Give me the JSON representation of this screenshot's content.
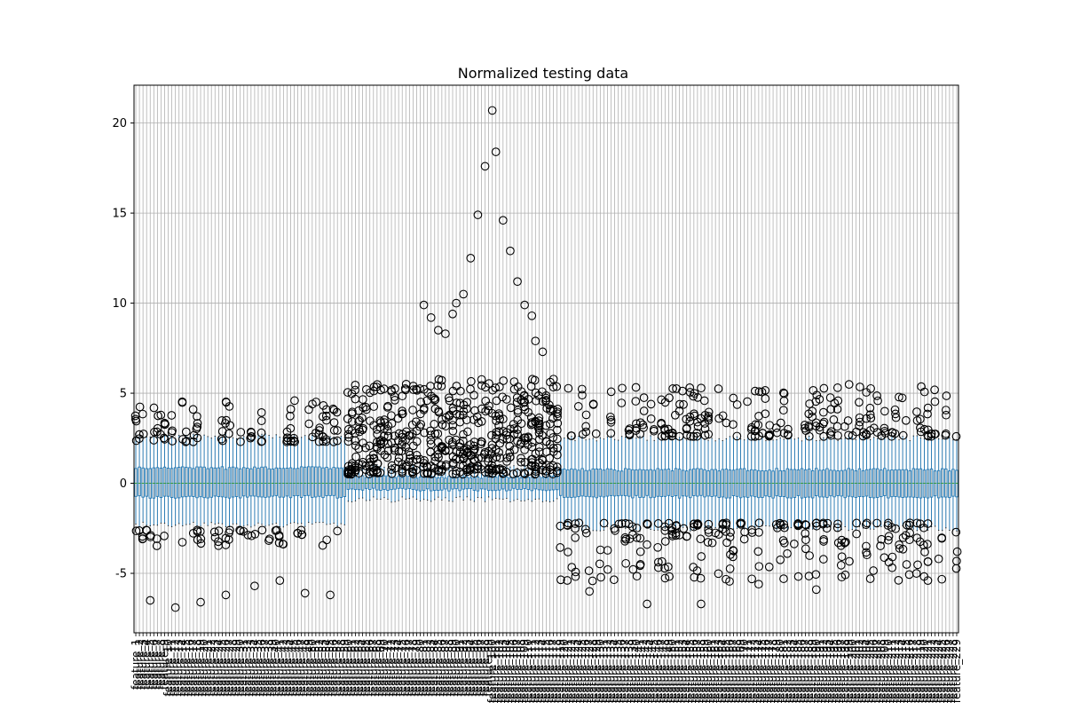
{
  "chart_data": {
    "type": "boxplot",
    "title": "Normalized testing data",
    "xlabel": "",
    "ylabel": "",
    "ylim": [
      -8.3,
      22.1
    ],
    "yticks": [
      -5,
      0,
      5,
      10,
      15,
      20
    ],
    "grid": true,
    "n_features": 229,
    "category_prefix": "feature_",
    "first_category": "feature_1",
    "last_category": "feature_229",
    "median": 0,
    "box_color": "#1f77b4",
    "median_color": "#2ca02c",
    "regions": [
      {
        "name": "features 1-59",
        "from": 1,
        "to": 59,
        "q1": -0.75,
        "q3": 0.85,
        "whisker_low": -2.3,
        "whisker_high": 2.6,
        "outliers_high_range": [
          2.0,
          4.6
        ],
        "outliers_low_range": [
          -3.6,
          -2.4
        ],
        "extreme_low": [
          -6.5,
          -6.9,
          -6.6,
          -6.2,
          -5.7,
          -5.4,
          -6.1,
          -6.2
        ]
      },
      {
        "name": "features 60-118",
        "from": 60,
        "to": 118,
        "q1": -0.35,
        "q3": 0.35,
        "whisker_low": -0.9,
        "whisker_high": 0.9,
        "outliers_high_range": [
          0.5,
          5.8
        ],
        "outliers_low_range": [],
        "extreme_high": [
          9.9,
          9.2,
          8.5,
          8.3,
          9.4,
          10.0,
          10.5,
          12.5,
          14.9,
          17.6,
          20.7,
          18.4,
          14.6,
          12.9,
          11.2,
          9.9,
          9.3,
          7.9,
          7.3
        ]
      },
      {
        "name": "features 119-229",
        "from": 119,
        "to": 229,
        "q1": -0.75,
        "q3": 0.75,
        "whisker_low": -2.5,
        "whisker_high": 2.5,
        "outliers_high_range": [
          2.3,
          5.5
        ],
        "outliers_low_range": [
          -5.5,
          -2.0
        ],
        "extreme_low": [
          -6.0,
          -6.7,
          -6.7,
          -5.6,
          -5.9,
          -5.3,
          -5.4
        ]
      }
    ]
  }
}
